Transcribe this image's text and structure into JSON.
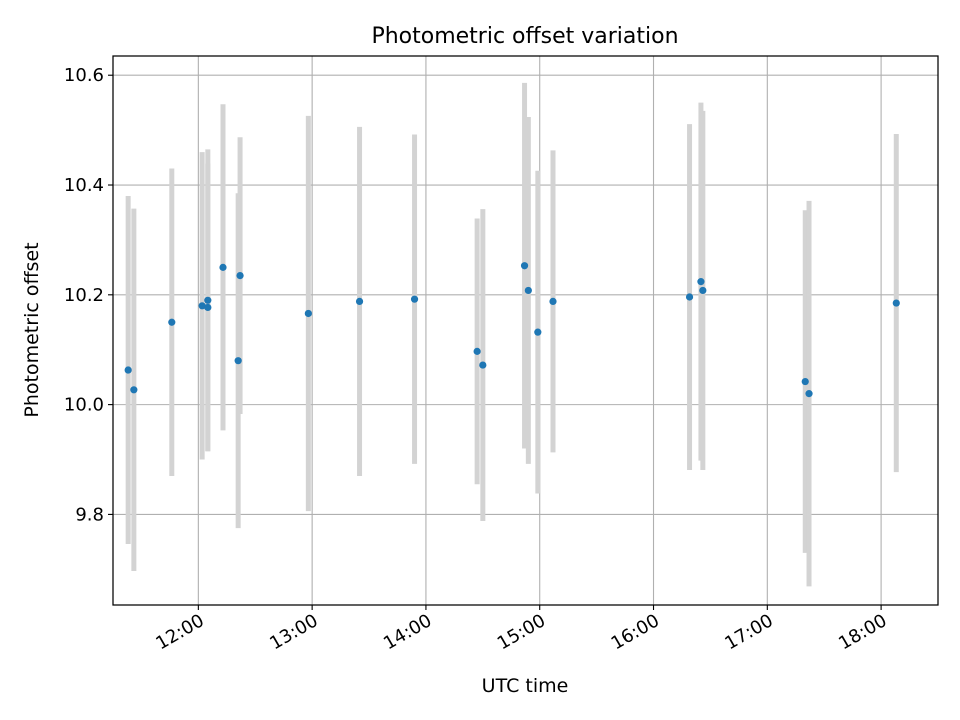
{
  "chart_data": {
    "type": "scatter",
    "title": "Photometric offset variation",
    "xlabel": "UTC time",
    "ylabel": "Photometric offset",
    "xlim": [
      "11:15",
      "18:30"
    ],
    "ylim": [
      9.635,
      10.635
    ],
    "x_ticks": [
      "12:00",
      "13:00",
      "14:00",
      "15:00",
      "16:00",
      "17:00",
      "18:00"
    ],
    "y_ticks": [
      "9.8",
      "10.0",
      "10.2",
      "10.4",
      "10.6"
    ],
    "grid": true,
    "point_color": "#1f77b4",
    "errorbar_color": "#d3d3d3",
    "points": [
      {
        "x": "11:23",
        "y": 10.063,
        "err": 0.317
      },
      {
        "x": "11:26",
        "y": 10.027,
        "err": 0.33
      },
      {
        "x": "11:46",
        "y": 10.15,
        "err": 0.28
      },
      {
        "x": "12:02",
        "y": 10.18,
        "err": 0.28
      },
      {
        "x": "12:05",
        "y": 10.19,
        "err": 0.275
      },
      {
        "x": "12:05",
        "y": 10.177,
        "err": 0.262
      },
      {
        "x": "12:13",
        "y": 10.25,
        "err": 0.297
      },
      {
        "x": "12:21",
        "y": 10.08,
        "err": 0.305
      },
      {
        "x": "12:22",
        "y": 10.235,
        "err": 0.252
      },
      {
        "x": "12:58",
        "y": 10.166,
        "err": 0.36
      },
      {
        "x": "13:25",
        "y": 10.188,
        "err": 0.318
      },
      {
        "x": "13:54",
        "y": 10.192,
        "err": 0.3
      },
      {
        "x": "14:27",
        "y": 10.097,
        "err": 0.242
      },
      {
        "x": "14:30",
        "y": 10.072,
        "err": 0.284
      },
      {
        "x": "14:52",
        "y": 10.253,
        "err": 0.333
      },
      {
        "x": "14:54",
        "y": 10.208,
        "err": 0.316
      },
      {
        "x": "14:59",
        "y": 10.132,
        "err": 0.294
      },
      {
        "x": "15:07",
        "y": 10.188,
        "err": 0.275
      },
      {
        "x": "16:19",
        "y": 10.196,
        "err": 0.315
      },
      {
        "x": "16:25",
        "y": 10.224,
        "err": 0.326
      },
      {
        "x": "16:26",
        "y": 10.208,
        "err": 0.327
      },
      {
        "x": "17:20",
        "y": 10.042,
        "err": 0.312
      },
      {
        "x": "17:22",
        "y": 10.02,
        "err": 0.351
      },
      {
        "x": "18:08",
        "y": 10.185,
        "err": 0.308
      }
    ]
  }
}
